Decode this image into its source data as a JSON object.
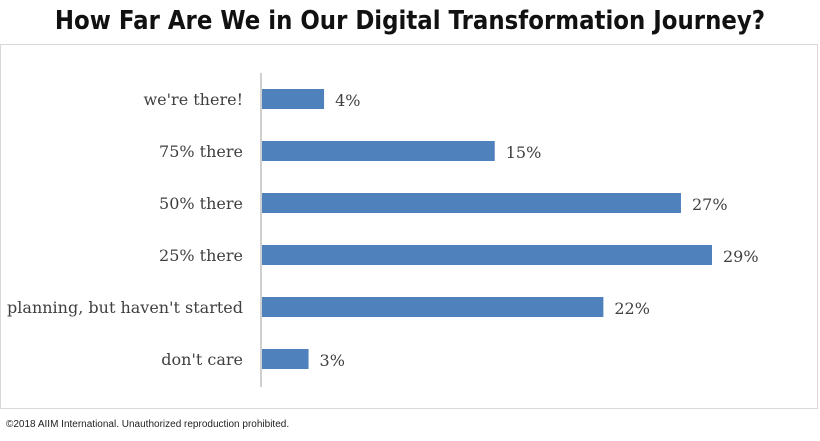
{
  "title": "How Far Are We in Our Digital Transformation Journey?",
  "copyright": "©2018 AIIM International. Unauthorized reproduction prohibited.",
  "colors": {
    "bar": "#4f81bd",
    "axis": "#bfbfbf",
    "text": "#404040"
  },
  "chart_data": {
    "type": "bar",
    "orientation": "horizontal",
    "categories": [
      "we're there!",
      "75% there",
      "50% there",
      "25% there",
      "planning, but haven't started",
      "don't care"
    ],
    "values": [
      4,
      15,
      27,
      29,
      22,
      3
    ],
    "value_labels": [
      "4%",
      "15%",
      "27%",
      "29%",
      "22%",
      "3%"
    ],
    "xlim": [
      0,
      30
    ],
    "grid": false,
    "legend": "none"
  }
}
